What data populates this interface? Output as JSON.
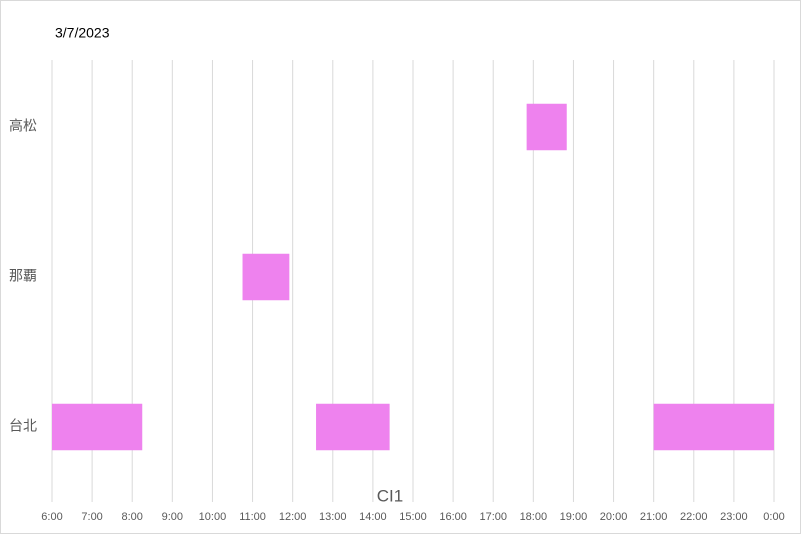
{
  "chart_data": {
    "type": "floating-bar",
    "title": "3/7/2023",
    "x_label": "CI1",
    "categories": [
      "台北",
      "那覇",
      "高松"
    ],
    "ranges": [
      [
        [
          6,
          8.25
        ],
        [
          12.583,
          14.417
        ],
        [
          21,
          24
        ]
      ],
      [
        [
          10.75,
          11.917
        ]
      ],
      [
        [
          17.833,
          18.833
        ]
      ]
    ],
    "color": "#ee82ee",
    "xlim": [
      6,
      24
    ],
    "xticks": [
      {
        "value": 6,
        "label": "6:00"
      },
      {
        "value": 7,
        "label": "7:00"
      },
      {
        "value": 8,
        "label": "8:00"
      },
      {
        "value": 9,
        "label": "9:00"
      },
      {
        "value": 10,
        "label": "10:00"
      },
      {
        "value": 11,
        "label": "11:00"
      },
      {
        "value": 12,
        "label": "12:00"
      },
      {
        "value": 13,
        "label": "13:00"
      },
      {
        "value": 14,
        "label": "14:00"
      },
      {
        "value": 15,
        "label": "15:00"
      },
      {
        "value": 16,
        "label": "16:00"
      },
      {
        "value": 17,
        "label": "17:00"
      },
      {
        "value": 18,
        "label": "18:00"
      },
      {
        "value": 19,
        "label": "19:00"
      },
      {
        "value": 20,
        "label": "20:00"
      },
      {
        "value": 21,
        "label": "21:00"
      },
      {
        "value": 22,
        "label": "22:00"
      },
      {
        "value": 23,
        "label": "23:00"
      },
      {
        "value": 24,
        "label": "0:00"
      }
    ],
    "grid": true
  }
}
